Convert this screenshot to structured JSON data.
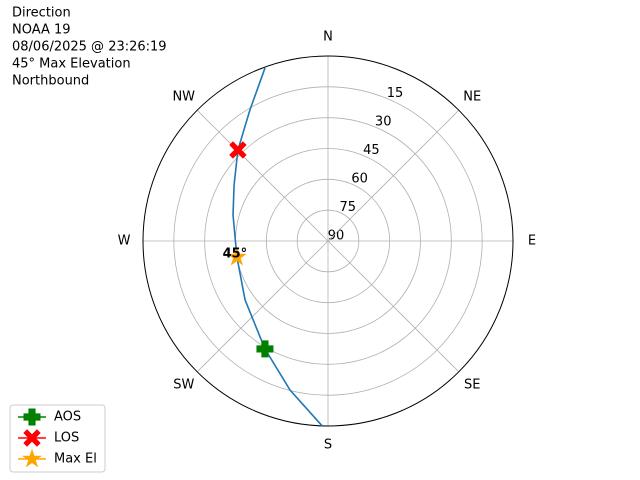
{
  "chart_data": {
    "type": "polar",
    "title_lines": [
      "Direction",
      "NOAA 19",
      "08/06/2025 @ 23:26:19",
      "45° Max Elevation",
      "Northbound"
    ],
    "xlim": [
      0,
      360
    ],
    "xticks": [
      {
        "value": 0,
        "label": "N"
      },
      {
        "value": 45,
        "label": "NE"
      },
      {
        "value": 90,
        "label": "E"
      },
      {
        "value": 135,
        "label": "SE"
      },
      {
        "value": 180,
        "label": "S"
      },
      {
        "value": 225,
        "label": "SW"
      },
      {
        "value": 270,
        "label": "W"
      },
      {
        "value": 315,
        "label": "NW"
      }
    ],
    "ylim": [
      90,
      0
    ],
    "yticks": [
      90,
      75,
      60,
      45,
      30,
      15
    ],
    "grid": true,
    "legend": "lower left",
    "series": [
      {
        "color": "#1f77b4",
        "marker": "none",
        "x": [
          181.8,
          194.3,
          210.3,
          234.6,
          260,
          285.3,
          300.8,
          315.3,
          329.2,
          340.0
        ],
        "values": [
          0,
          15.2,
          29.2,
          40.5,
          45,
          42.1,
          36.8,
          27.7,
          15.8,
          0.4
        ]
      },
      {
        "name": "AOS",
        "color": "#008000",
        "marker": "plus",
        "x": [
          210.3
        ],
        "values": [
          29.2
        ]
      },
      {
        "name": "LOS",
        "color": "#ff0000",
        "marker": "x",
        "x": [
          315.3
        ],
        "values": [
          27.7
        ]
      },
      {
        "name": "Max El",
        "color": "#ffa500",
        "marker": "star",
        "x": [
          260
        ],
        "values": [
          45
        ]
      }
    ],
    "annotations": [
      {
        "text": "45°",
        "x": 260,
        "y": 45
      }
    ]
  }
}
